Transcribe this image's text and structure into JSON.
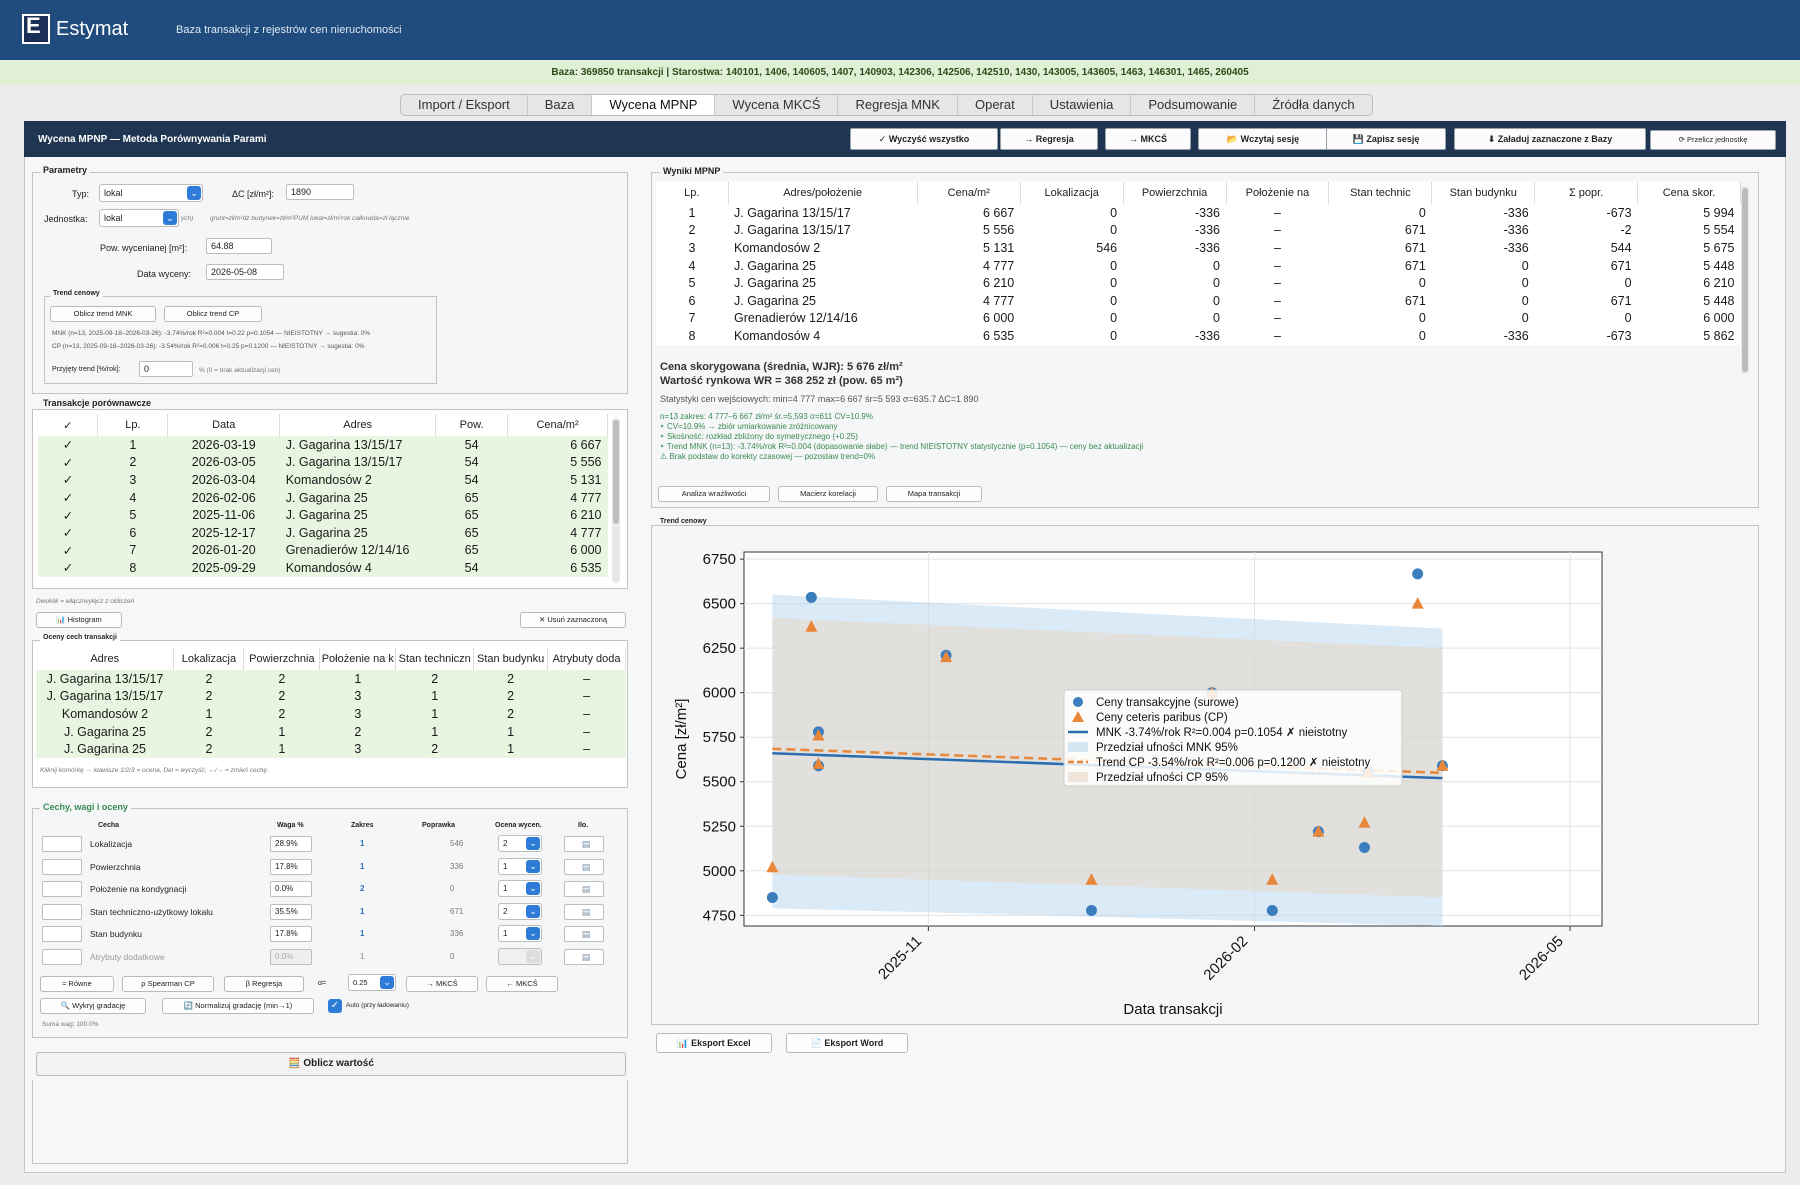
{
  "app": {
    "name": "Estymat",
    "subtitle": "Baza transakcji z rejestrów cen nieruchomości"
  },
  "infobar": "Baza: 369850 transakcji  |  Starostwa: 140101, 1406, 140605, 1407, 140903, 142306, 142506, 142510, 1430, 143005, 143605, 1463, 146301, 1465, 260405",
  "tabs": [
    "Import / Eksport",
    "Baza",
    "Wycena MPNP",
    "Wycena MKCŚ",
    "Regresja MNK",
    "Operat",
    "Ustawienia",
    "Podsumowanie",
    "Źródła danych"
  ],
  "active_tab": "Wycena MPNP",
  "header": {
    "title": "Wycena MPNP — Metoda Porównywania Parami",
    "buttons": [
      "✓ Wyczyść wszystko",
      "→ Regresja",
      "→ MKCŚ",
      "📂 Wczytaj sesję",
      "💾 Zapisz sesję",
      "⬇ Załaduj zaznaczone z Bazy",
      "⟳ Przelicz jednostkę"
    ]
  },
  "params": {
    "title": "Parametry",
    "typ_label": "Typ:",
    "typ_value": "lokal",
    "dc_label": "ΔC [zł/m²]:",
    "dc_value": "1890",
    "jednostka_label": "Jednostka:",
    "jednostka_value": "lokal",
    "jednostka_hint_pre": "ych)",
    "jednostka_hint": "grunt=zł/m²dz  budynek=zł/m²PUM  lokal=zł/m²rok  całkowita=zł łącznie",
    "pow_label": "Pow. wycenianej [m²]:",
    "pow_value": "64.88",
    "data_label": "Data wyceny:",
    "data_value": "2026-05-08",
    "trend": {
      "title": "Trend cenowy",
      "btn_mnk": "Oblicz trend MNK",
      "btn_cp": "Oblicz trend CP",
      "line_mnk": "MNK (n=13, 2025-09-18–2026-03-26): -3.74%/rok  R²=0.004  t=0.22  p=0.1054 — NIEISTOTNY  → sugestia: 0%",
      "line_cp": "CP (n=13, 2025-09-18–2026-03-26): -3.54%/rok  R²=0.006  t=0.25  p=0.1200 — NIEISTOTNY  → sugestia: 0%",
      "przyjety_label": "Przyjęty trend [%/rok]:",
      "przyjety_value": "0",
      "przyjety_hint": "% (0 = brak aktualizacji cen)"
    }
  },
  "trans": {
    "title": "Transakcje porównawcze",
    "headers": [
      "✓",
      "Lp.",
      "Data",
      "Adres",
      "Pow.",
      "Cena/m²"
    ],
    "rows": [
      [
        "✓",
        "1",
        "2026-03-19",
        "J. Gagarina 13/15/17",
        "54",
        "6 667"
      ],
      [
        "✓",
        "2",
        "2026-03-05",
        "J. Gagarina 13/15/17",
        "54",
        "5 556"
      ],
      [
        "✓",
        "3",
        "2026-03-04",
        "Komandosów 2",
        "54",
        "5 131"
      ],
      [
        "✓",
        "4",
        "2026-02-06",
        "J. Gagarina 25",
        "65",
        "4 777"
      ],
      [
        "✓",
        "5",
        "2025-11-06",
        "J. Gagarina 25",
        "65",
        "6 210"
      ],
      [
        "✓",
        "6",
        "2025-12-17",
        "J. Gagarina 25",
        "65",
        "4 777"
      ],
      [
        "✓",
        "7",
        "2026-01-20",
        "Grenadierów 12/14/16",
        "65",
        "6 000"
      ],
      [
        "✓",
        "8",
        "2025-09-29",
        "Komandosów 4",
        "54",
        "6 535"
      ]
    ],
    "hint": "Dwuklik = włącz/wyłącz z obliczeń",
    "btn_hist": "📊 Histogram",
    "btn_usun": "✕ Usuń zaznaczoną"
  },
  "oceny": {
    "title": "Oceny cech transakcji",
    "headers": [
      "Adres",
      "Lokalizacja",
      "Powierzchnia",
      "Położenie na k",
      "Stan techniczn",
      "Stan budynku",
      "Atrybuty doda"
    ],
    "rows": [
      [
        "J. Gagarina 13/15/17",
        "2",
        "2",
        "1",
        "2",
        "2",
        "–"
      ],
      [
        "J. Gagarina 13/15/17",
        "2",
        "2",
        "3",
        "1",
        "2",
        "–"
      ],
      [
        "Komandosów 2",
        "1",
        "2",
        "3",
        "1",
        "2",
        "–"
      ],
      [
        "J. Gagarina 25",
        "2",
        "1",
        "2",
        "1",
        "1",
        "–"
      ],
      [
        "J. Gagarina 25",
        "2",
        "1",
        "3",
        "2",
        "1",
        "–"
      ]
    ],
    "hint": "Kliknij komórkę → klawisze 1/2/3 = ocena, Del = wyczyść, ←/→ = zmień cechę"
  },
  "cechy": {
    "title": "Cechy, wagi i oceny",
    "headers": [
      "Cecha",
      "Waga %",
      "Zakres",
      "Poprawka",
      "Ocena wycen.",
      "Ilo."
    ],
    "rows": [
      {
        "name": "Lokalizacja",
        "waga": "28.9%",
        "zakres": "1",
        "poprawka": "546",
        "ocena": "2"
      },
      {
        "name": "Powierzchnia",
        "waga": "17.8%",
        "zakres": "1",
        "poprawka": "336",
        "ocena": "1"
      },
      {
        "name": "Położenie na kondygnacji",
        "waga": "0.0%",
        "zakres": "2",
        "poprawka": "0",
        "ocena": "1"
      },
      {
        "name": "Stan techniczno-użytkowy lokalu",
        "waga": "35.5%",
        "zakres": "1",
        "poprawka": "671",
        "ocena": "2"
      },
      {
        "name": "Stan budynku",
        "waga": "17.8%",
        "zakres": "1",
        "poprawka": "336",
        "ocena": "1"
      },
      {
        "name": "Atrybuty dodatkowe",
        "waga": "0.0%",
        "zakres": "1",
        "poprawka": "0",
        "ocena": ""
      }
    ],
    "btn_rowne": "≈ Równe",
    "btn_spearman": "ρ Spearman CP",
    "btn_regresja": "β Regresja",
    "alpha_label": "α=",
    "alpha_value": "0.25",
    "btn_to_mkcs": "→ MKCŚ",
    "btn_from_mkcs": "← MKCŚ",
    "btn_wykryj": "🔍 Wykryj gradację",
    "btn_normalizuj": "🔄 Normalizuj gradację (min→1)",
    "auto_label": "Auto (przy ładowaniu)",
    "suma": "Suma wag: 100.0%",
    "btn_oblicz": "🧮 Oblicz wartość"
  },
  "wyniki": {
    "title": "Wyniki MPNP",
    "headers": [
      "Lp.",
      "Adres/położenie",
      "Cena/m²",
      "Lokalizacja",
      "Powierzchnia",
      "Położenie na",
      "Stan technic",
      "Stan budynku",
      "Σ popr.",
      "Cena skor."
    ],
    "rows": [
      [
        "1",
        "J. Gagarina 13/15/17",
        "6 667",
        "0",
        "-336",
        "–",
        "0",
        "-336",
        "-673",
        "5 994"
      ],
      [
        "2",
        "J. Gagarina 13/15/17",
        "5 556",
        "0",
        "-336",
        "–",
        "671",
        "-336",
        "-2",
        "5 554"
      ],
      [
        "3",
        "Komandosów 2",
        "5 131",
        "546",
        "-336",
        "–",
        "671",
        "-336",
        "544",
        "5 675"
      ],
      [
        "4",
        "J. Gagarina 25",
        "4 777",
        "0",
        "0",
        "–",
        "671",
        "0",
        "671",
        "5 448"
      ],
      [
        "5",
        "J. Gagarina 25",
        "6 210",
        "0",
        "0",
        "–",
        "0",
        "0",
        "0",
        "6 210"
      ],
      [
        "6",
        "J. Gagarina 25",
        "4 777",
        "0",
        "0",
        "–",
        "671",
        "0",
        "671",
        "5 448"
      ],
      [
        "7",
        "Grenadierów 12/14/16",
        "6 000",
        "0",
        "0",
        "–",
        "0",
        "0",
        "0",
        "6 000"
      ],
      [
        "8",
        "Komandosów 4",
        "6 535",
        "0",
        "-336",
        "–",
        "0",
        "-336",
        "-673",
        "5 862"
      ]
    ],
    "summary1": "Cena skorygowana (średnia, WJR): 5 676 zł/m²",
    "summary2": "Wartość rynkowa WR = 368 252 zł  (pow. 65 m²)",
    "stats": "Statystyki cen wejściowych:  min=4 777  max=6 667  śr=5 593  σ=635.7  ΔC=1 890",
    "notes": [
      "n=13  zakres: 4 777–6 667 zł/m²  śr.=5,593  σ=611  CV=10.9%",
      "‣ CV=10.9% → zbiór umiarkowanie zróżnicowany",
      "‣ Skośność: rozkład zbliżony do symetrycznego (+0.25)",
      "‣ Trend MNK (n=13): -3.74%/rok  R²=0.004 (dopasowanie słabe) — trend NIEISTOTNY statystycznie (p=0.1054) — ceny bez aktualizacji",
      "  ⚠ Brak podstaw do korekty czasowej — pozostaw trend=0%"
    ],
    "btn_analiza": "Analiza wrażliwości",
    "btn_macierz": "Macierz korelacji",
    "btn_mapa": "Mapa transakcji"
  },
  "trend_panel": {
    "title": "Trend cenowy",
    "btn_excel": "📊 Eksport Excel",
    "btn_word": "📄 Eksport Word"
  },
  "chart_data": {
    "type": "scatter",
    "title": "",
    "xlabel": "Data transakcji",
    "ylabel": "Cena [zł/m²]",
    "x_ticks": [
      "2025-11",
      "2026-02",
      "2026-05"
    ],
    "y_ticks": [
      4750,
      5000,
      5250,
      5500,
      5750,
      6000,
      6250,
      6500,
      6750
    ],
    "xlim": [
      "2025-09-10",
      "2026-05-10"
    ],
    "ylim": [
      4690,
      6790
    ],
    "grid": true,
    "legend_position": "center",
    "series": [
      {
        "name": "Ceny transakcyjne (surowe)",
        "kind": "scatter",
        "marker": "circle",
        "color": "#3b7dbd",
        "x": [
          "2025-09-29",
          "2025-10-01",
          "2025-10-01",
          "2025-09-18",
          "2025-11-06",
          "2025-12-17",
          "2026-01-20",
          "2026-02-06",
          "2026-02-19",
          "2026-03-04",
          "2026-03-05",
          "2026-03-19",
          "2026-03-26"
        ],
        "y": [
          6535,
          5780,
          5590,
          4850,
          6210,
          4777,
          6000,
          4777,
          5220,
          5131,
          5556,
          6667,
          5590
        ]
      },
      {
        "name": "Ceny ceteris paribus (CP)",
        "kind": "scatter",
        "marker": "triangle",
        "color": "#e8863a",
        "x": [
          "2025-09-29",
          "2025-10-01",
          "2025-10-01",
          "2025-09-18",
          "2025-11-06",
          "2025-12-17",
          "2026-01-20",
          "2026-02-06",
          "2026-02-19",
          "2026-03-04",
          "2026-03-05",
          "2026-03-19",
          "2026-03-26"
        ],
        "y": [
          6370,
          5760,
          5600,
          5020,
          6200,
          4950,
          6000,
          4950,
          5220,
          5270,
          5550,
          6500,
          5590
        ]
      },
      {
        "name": "MNK -3.74%/rok  R²=0.004  p=0.1054  ✗ nieistotny",
        "kind": "line",
        "color": "#2a6eb0",
        "x": [
          "2025-09-18",
          "2026-03-26"
        ],
        "y": [
          5660,
          5520
        ]
      },
      {
        "name": "Przedział ufności MNK 95%",
        "kind": "band",
        "color": "#bcd8ef",
        "x": [
          "2025-09-18",
          "2026-03-26"
        ],
        "low": [
          4790,
          4690
        ],
        "high": [
          6550,
          6360
        ]
      },
      {
        "name": "Trend CP -3.54%/rok  R²=0.006  p=0.1200  ✗ nieistotny",
        "kind": "dashed",
        "color": "#e8863a",
        "x": [
          "2025-09-18",
          "2026-03-26"
        ],
        "y": [
          5685,
          5550
        ]
      },
      {
        "name": "Przedział ufności CP 95%",
        "kind": "band",
        "color": "#e8d7c6",
        "x": [
          "2025-09-18",
          "2026-03-26"
        ],
        "low": [
          4980,
          4850
        ],
        "high": [
          6420,
          6250
        ]
      }
    ]
  }
}
